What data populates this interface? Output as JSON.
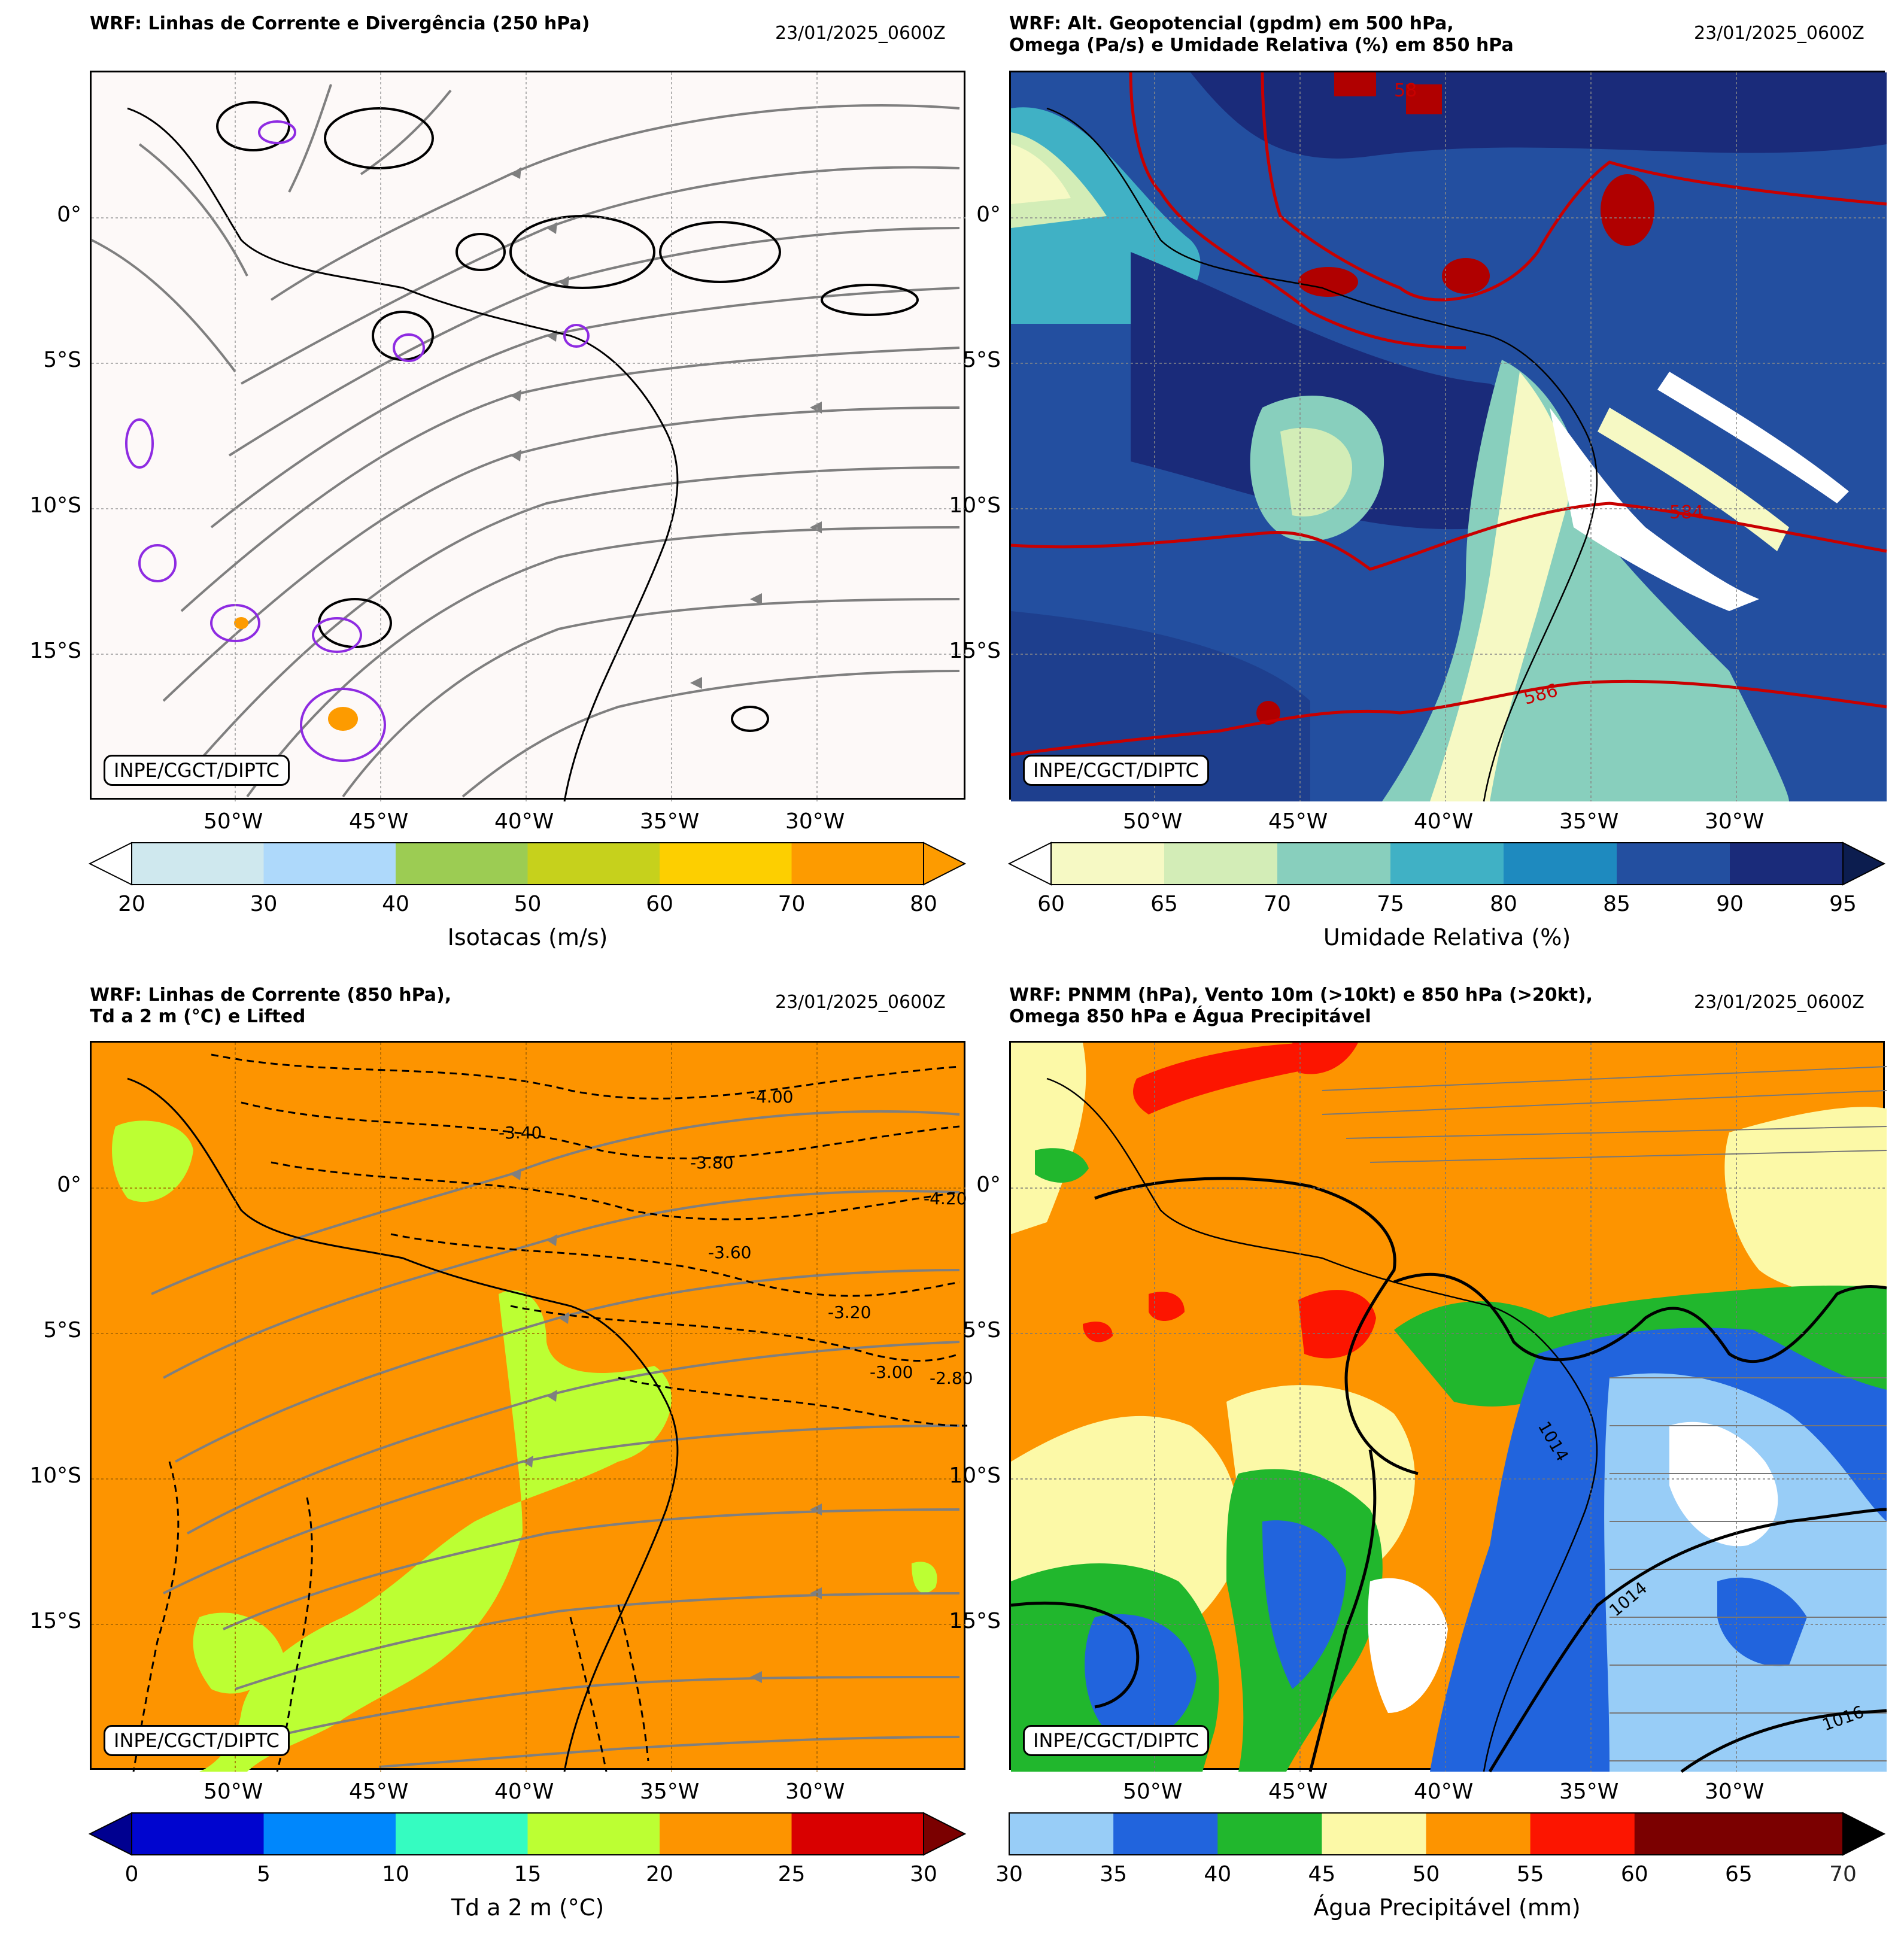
{
  "credit": "INPE/CGCT/DIPTC",
  "x_ticks": [
    "50°W",
    "45°W",
    "40°W",
    "35°W",
    "30°W"
  ],
  "y_ticks": [
    "0°",
    "5°S",
    "10°S",
    "15°S"
  ],
  "panels": [
    {
      "title": "WRF: Linhas de Corrente e Divergência (250 hPa)",
      "date": "23/01/2025_0600Z",
      "background": "#fdf9f8",
      "colorbar": {
        "label": "Isotacas (m/s)",
        "ticks": [
          "20",
          "30",
          "40",
          "50",
          "60",
          "70",
          "80"
        ],
        "colors": [
          "#cfe8ee",
          "#aed9fb",
          "#9ccc53",
          "#c6d11c",
          "#fdcf00",
          "#fd9b00"
        ],
        "extend_low": "#ffffff",
        "extend_high": "#fd9b00"
      },
      "contour_labels": []
    },
    {
      "title": "WRF: Alt. Geopotencial (gpdm) em 500 hPa,\nOmega (Pa/s) e Umidade Relativa (%) em 850 hPa",
      "date": "23/01/2025_0600Z",
      "background": "#1e3f8e",
      "colorbar": {
        "label": "Umidade Relativa (%)",
        "ticks": [
          "60",
          "65",
          "70",
          "75",
          "80",
          "85",
          "90",
          "95"
        ],
        "colors": [
          "#f6f9c4",
          "#d3edb7",
          "#88cfbd",
          "#40b1c5",
          "#1e8abf",
          "#234fa0",
          "#1a2b7a"
        ],
        "extend_low": "#ffffff",
        "extend_high": "#0c1d4f"
      },
      "contour_labels": [
        "584",
        "586",
        "58"
      ]
    },
    {
      "title": "WRF: Linhas de Corrente (850 hPa),\nTd a 2 m (°C) e Lifted",
      "date": "23/01/2025_0600Z",
      "background": "#fd9400",
      "colorbar": {
        "label": "Td a 2 m (°C)",
        "ticks": [
          "0",
          "5",
          "10",
          "15",
          "20",
          "25",
          "30"
        ],
        "colors": [
          "#0005cf",
          "#0087fc",
          "#35fcc1",
          "#bcff33",
          "#fd9400",
          "#d90000"
        ],
        "extend_low": "#000090",
        "extend_high": "#7b0000"
      },
      "contour_labels": [
        "-3.80",
        "-3.60",
        "-4.00",
        "-3.20",
        "-3.40",
        "-3.00",
        "-2.80",
        "-4.20"
      ]
    },
    {
      "title": "WRF: PNMM (hPa), Vento 10m (>10kt) e 850 hPa (>20kt),\nOmega 850 hPa e Água Precipitável",
      "date": "23/01/2025_0600Z",
      "background": "#fd9400",
      "colorbar": {
        "label": "Água Precipitável (mm)",
        "ticks": [
          "30",
          "35",
          "40",
          "45",
          "50",
          "55",
          "60",
          "65"
        ],
        "overlap_tick": "70",
        "colors": [
          "#98cdf7",
          "#2164dd",
          "#21b72d",
          "#fcf9a7",
          "#fd9400",
          "#fc1500",
          "#7b0000",
          "#7b0000"
        ],
        "extend_high": "#000000"
      },
      "contour_labels": [
        "1014",
        "1014",
        "1016"
      ]
    }
  ]
}
